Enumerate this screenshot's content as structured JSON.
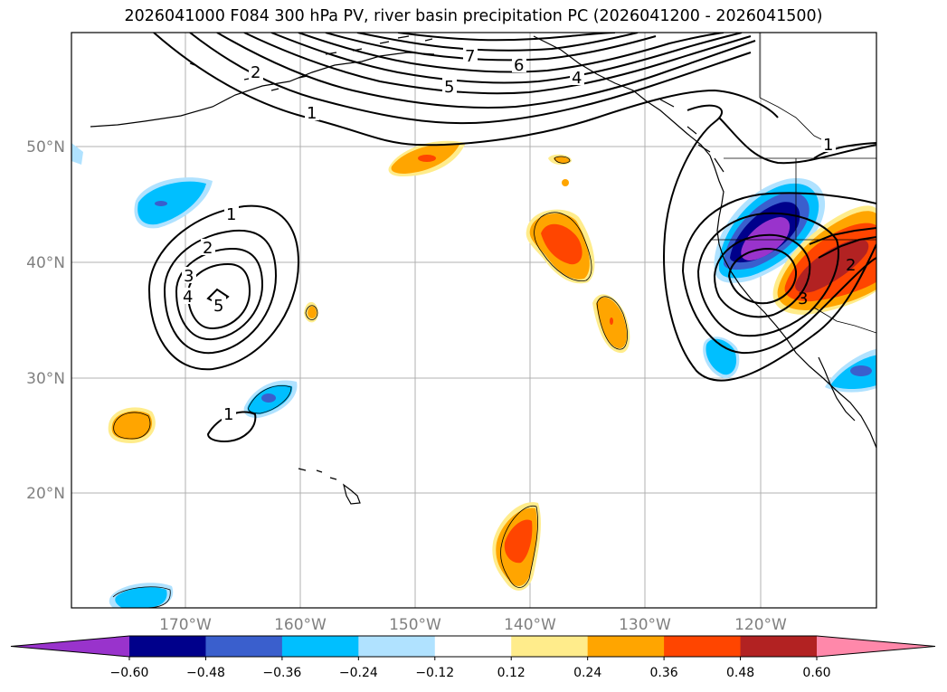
{
  "title": "2026041000 F084 300 hPa PV, river basin precipitation PC (2026041200 - 2026041500)",
  "map": {
    "lat_labels": [
      "50°N",
      "40°N",
      "30°N",
      "20°N"
    ],
    "lon_labels": [
      "170°W",
      "160°W",
      "150°W",
      "140°W",
      "130°W",
      "120°W"
    ],
    "pv_contour_labels": [
      "1",
      "2",
      "4",
      "5",
      "6",
      "7",
      "1",
      "2",
      "3",
      "4",
      "5",
      "1",
      "1",
      "2",
      "3"
    ]
  },
  "colorbar": {
    "ticks": [
      "−0.60",
      "−0.48",
      "−0.36",
      "−0.24",
      "−0.12",
      "0.12",
      "0.24",
      "0.36",
      "0.48",
      "0.60"
    ],
    "colors": [
      "#9933cc",
      "#00008b",
      "#3a5fcd",
      "#00bfff",
      "#b0e2ff",
      "#ffffff",
      "#ffec8b",
      "#ffa500",
      "#ff4500",
      "#b22222",
      "#ff88aa"
    ]
  },
  "colors": {
    "neg_strong": "#9933cc",
    "neg_navy": "#00008b",
    "neg_mid": "#3a5fcd",
    "neg_light": "#00bfff",
    "neg_pale": "#b0e2ff",
    "pos_pale": "#ffec8b",
    "pos_light": "#ffa500",
    "pos_mid": "#ff4500",
    "pos_strong": "#b22222",
    "pos_max": "#ff88aa"
  }
}
